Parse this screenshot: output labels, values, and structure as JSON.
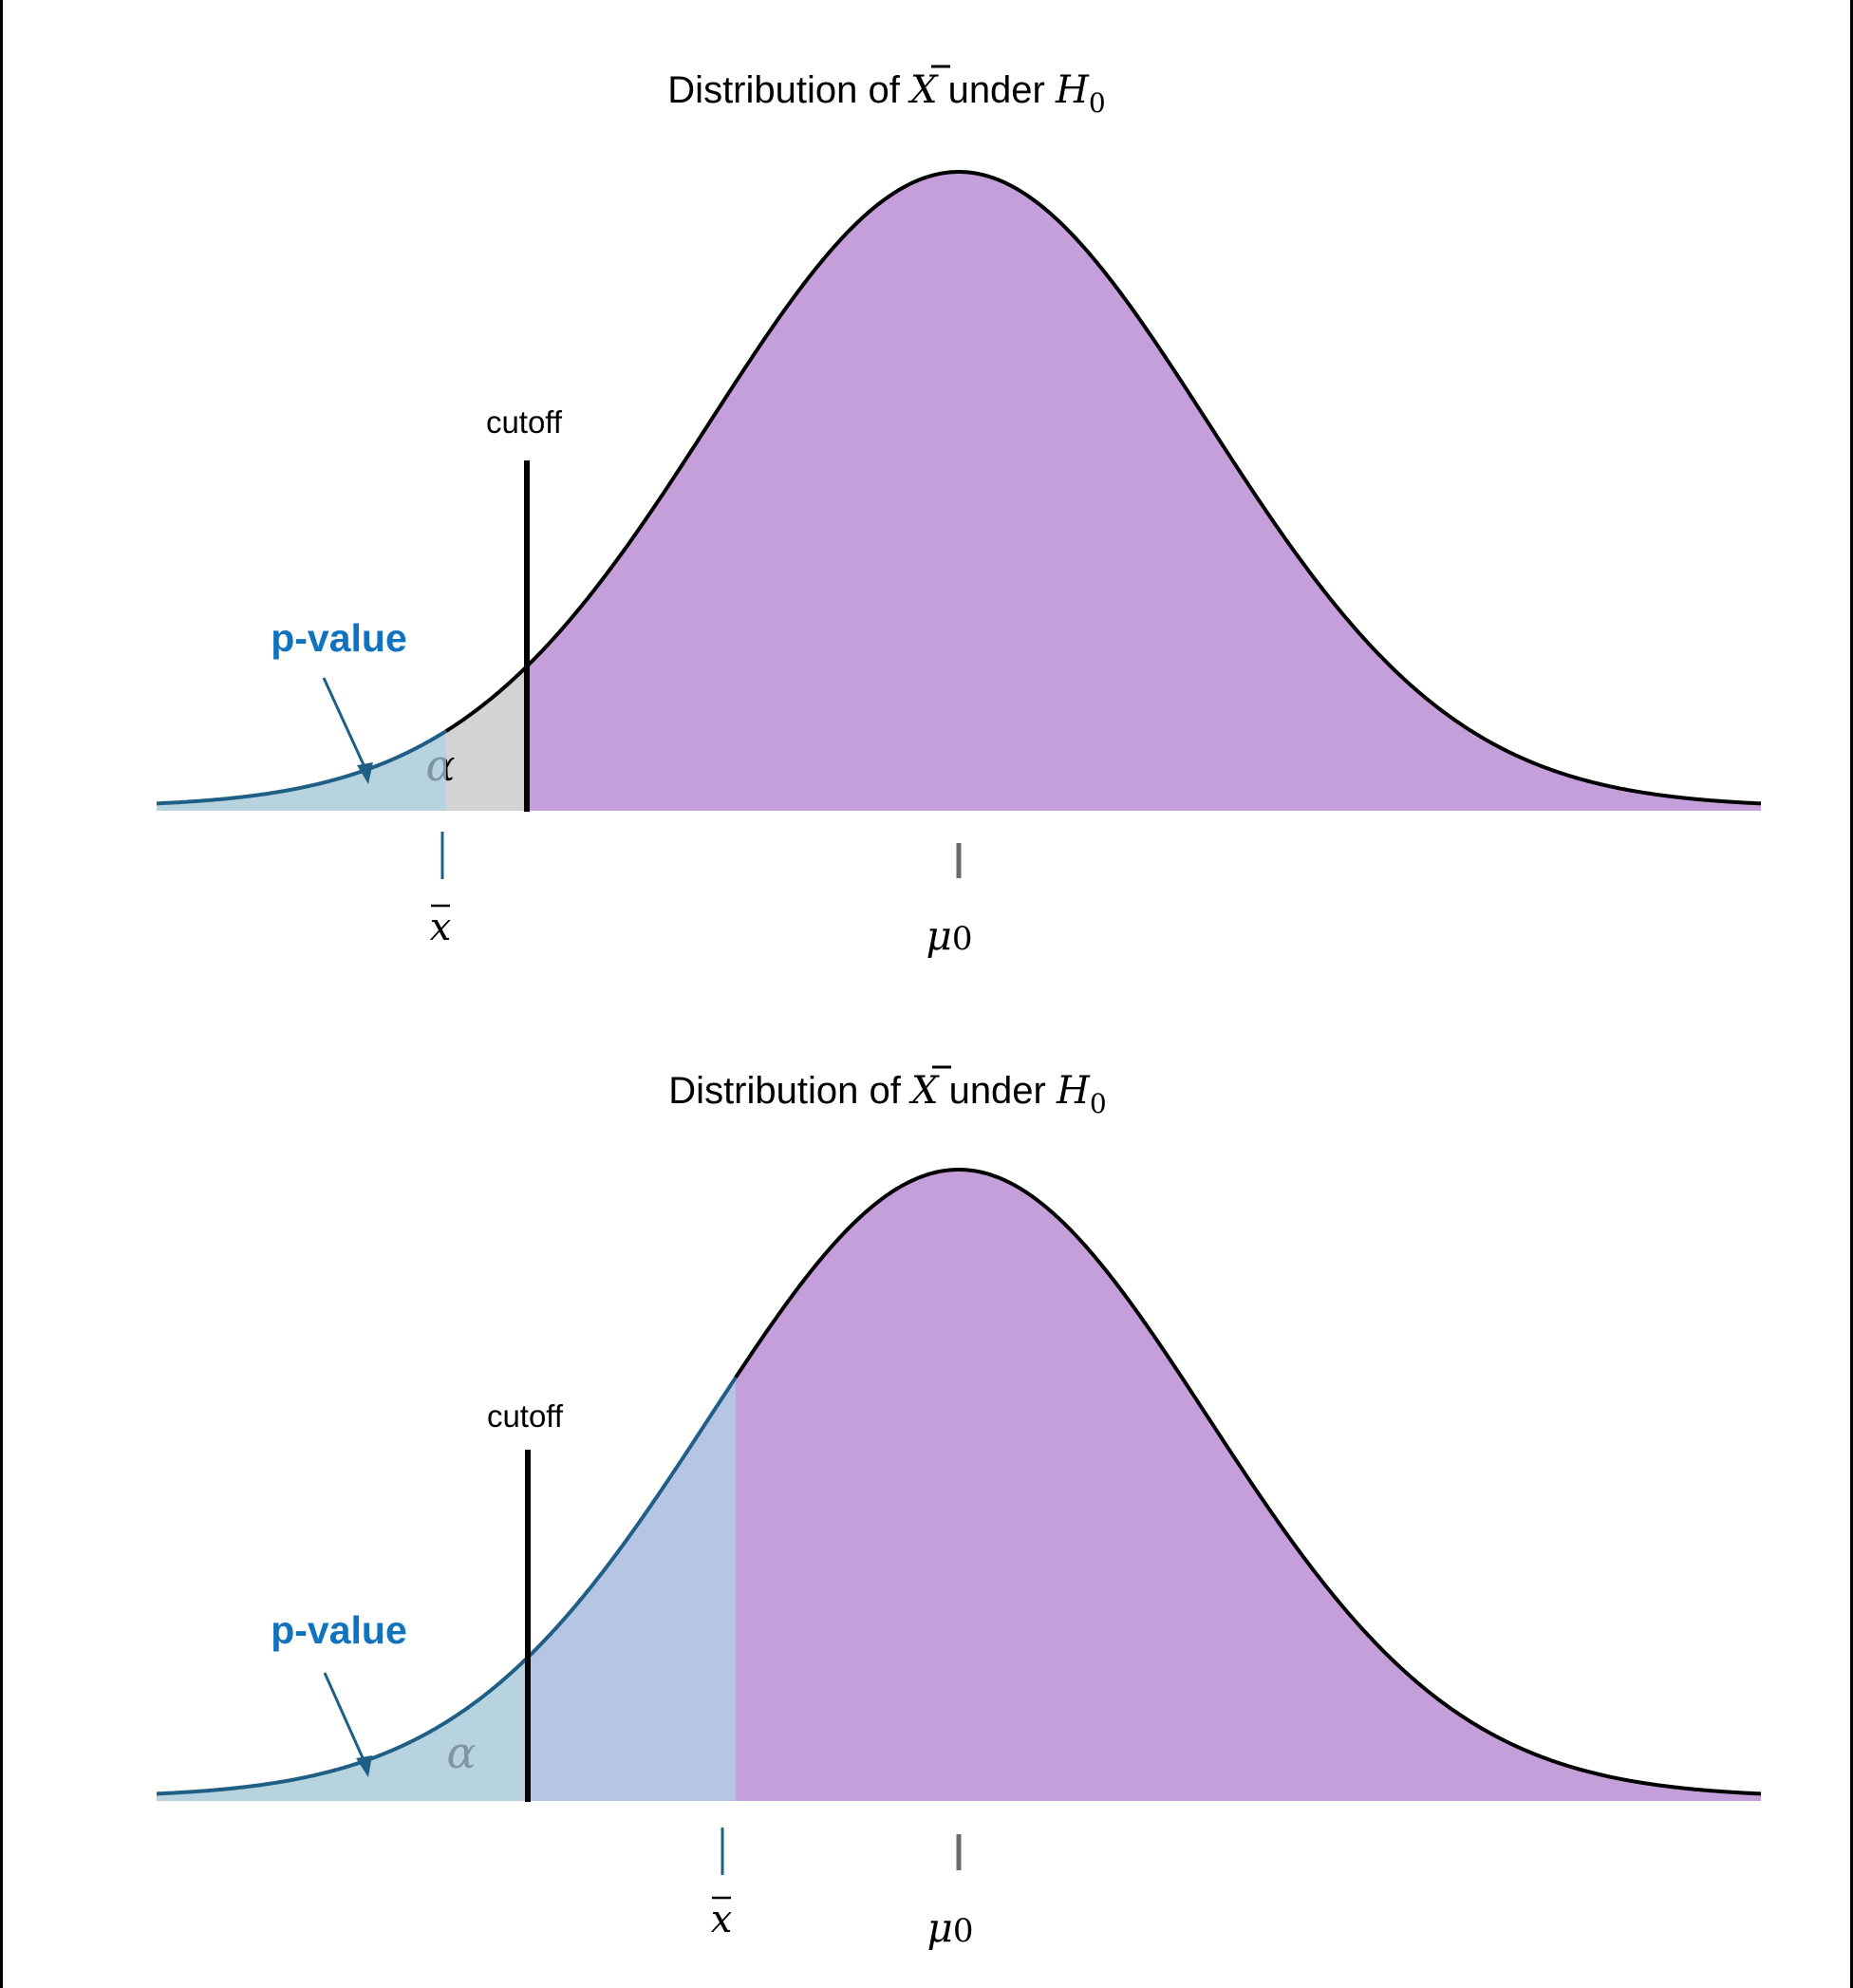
{
  "colors": {
    "purple_region": "#C59FDA",
    "pvalue_region": "#B7D3E0",
    "alpha_only_region": "#D3D3D3",
    "pvalue_extra_region": "#B5C5E3",
    "curve_black": "#000000",
    "curve_blue": "#1F5F86",
    "pvalue_label": "#1173BE",
    "mu_tick": "#6B6B6B",
    "alpha_grey": "#7E96A3"
  },
  "panels": [
    {
      "title": {
        "prefix": "Distribution of ",
        "var": "X",
        "mid": " under ",
        "hyp": "H",
        "hyp_sub": "0"
      },
      "cutoff_label": "cutoff",
      "pvalue_label": "p-value",
      "alpha_label": "α",
      "xbar_label": "x",
      "mu_label": "μ",
      "mu_sub": "0",
      "case": "x̄ below cutoff (p-value < α, reject H0)"
    },
    {
      "title": {
        "prefix": "Distribution of ",
        "var": "X",
        "mid": " under ",
        "hyp": "H",
        "hyp_sub": "0"
      },
      "cutoff_label": "cutoff",
      "pvalue_label": "p-value",
      "alpha_label": "α",
      "xbar_label": "x",
      "mu_label": "μ",
      "mu_sub": "0",
      "case": "x̄ above cutoff (p-value > α, fail to reject H0)"
    }
  ]
}
